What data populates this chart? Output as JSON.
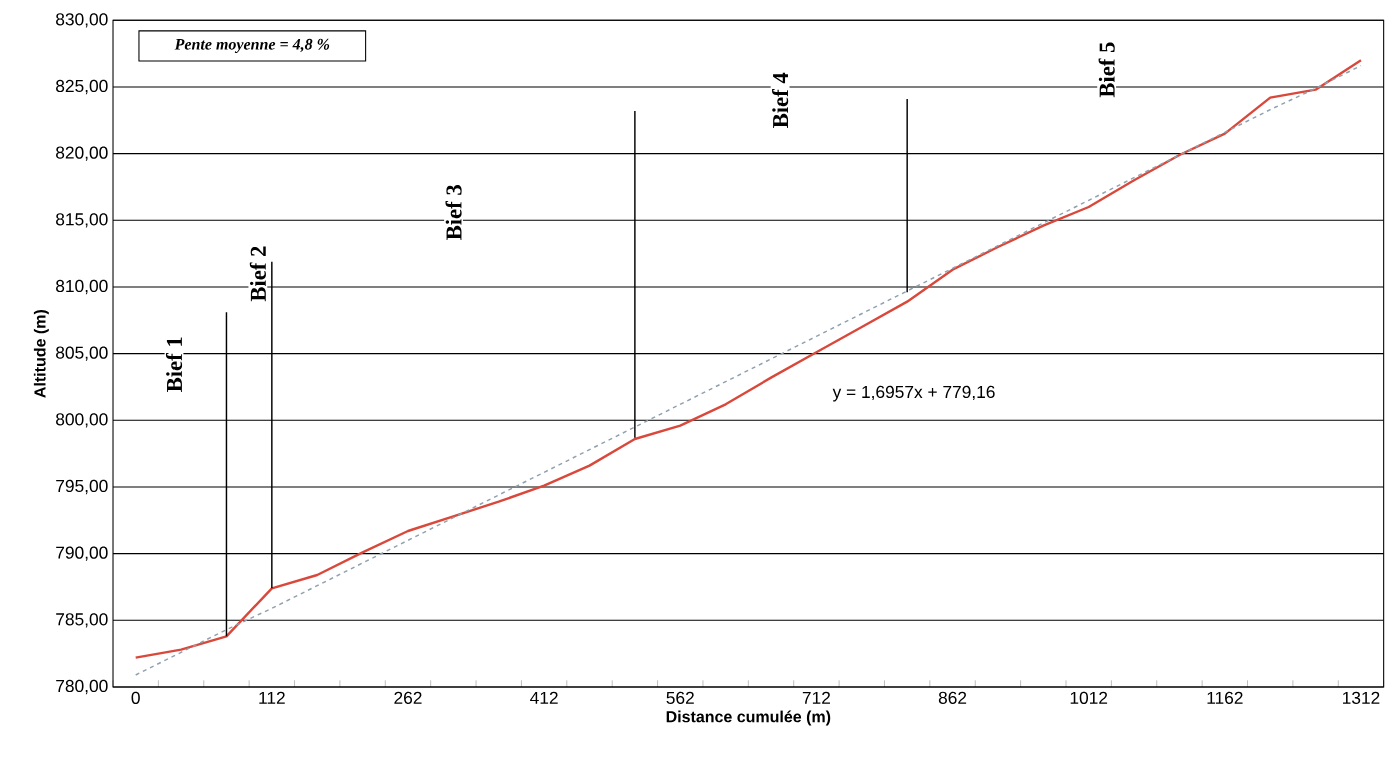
{
  "chart_data": {
    "type": "line",
    "xlabel": "Distance cumulée (m)",
    "ylabel": "Altitude (m)",
    "categories": [
      "0",
      null,
      null,
      "112",
      null,
      null,
      "262",
      null,
      null,
      "412",
      null,
      null,
      "562",
      null,
      null,
      "712",
      null,
      null,
      "862",
      null,
      null,
      "1012",
      null,
      null,
      "1162",
      null,
      null,
      "1312"
    ],
    "ylim": [
      780,
      830
    ],
    "yticks": [
      {
        "value": 780,
        "label": "780,00"
      },
      {
        "value": 785,
        "label": "785,00"
      },
      {
        "value": 790,
        "label": "790,00"
      },
      {
        "value": 795,
        "label": "795,00"
      },
      {
        "value": 800,
        "label": "800,00"
      },
      {
        "value": 805,
        "label": "805,00"
      },
      {
        "value": 810,
        "label": "810,00"
      },
      {
        "value": 815,
        "label": "815,00"
      },
      {
        "value": 820,
        "label": "820,00"
      },
      {
        "value": 825,
        "label": "825,00"
      },
      {
        "value": 830,
        "label": "830,00"
      }
    ],
    "grid": "y",
    "marker": "none",
    "line_style": "solid",
    "series": [
      {
        "color": "#d9483b",
        "values": [
          782.2,
          782.8,
          783.8,
          787.4,
          788.4,
          790.1,
          791.7,
          792.8,
          793.9,
          795.1,
          796.6,
          798.6,
          799.6,
          801.2,
          803.2,
          805.1,
          807.0,
          808.9,
          811.3,
          813.0,
          814.6,
          816.0,
          818.0,
          819.9,
          821.5,
          824.2,
          824.8,
          827.0
        ]
      },
      {
        "color": "#8fa0ae",
        "line_style": "dashed",
        "values": [
          780.9,
          782.6,
          784.3,
          785.9,
          787.6,
          789.3,
          791.0,
          792.7,
          794.4,
          796.1,
          797.8,
          799.5,
          801.2,
          802.9,
          804.6,
          806.3,
          808.0,
          809.7,
          811.4,
          813.1,
          814.8,
          816.5,
          818.2,
          819.9,
          821.6,
          823.3,
          824.9,
          826.6
        ]
      },
      {
        "type": "bar",
        "color": "#000000",
        "base": [
          null,
          null,
          783.8,
          787.4,
          null,
          null,
          null,
          null,
          null,
          null,
          null,
          798.7,
          null,
          null,
          null,
          null,
          null,
          809.6,
          null,
          null,
          null,
          null,
          null,
          null,
          null,
          null,
          null,
          null
        ],
        "values": [
          null,
          null,
          24.3,
          24.5,
          null,
          null,
          null,
          null,
          null,
          null,
          null,
          24.5,
          null,
          null,
          null,
          null,
          null,
          14.5,
          null,
          null,
          null,
          null,
          null,
          null,
          null,
          null,
          null,
          null
        ]
      }
    ],
    "annotations": [
      "Pente moyenne = 4,8 %",
      "y = 1,6957x + 779,16",
      "Bief 1",
      "Bief 2",
      "Bief 3",
      "Bief 4",
      "Bief 5"
    ]
  }
}
